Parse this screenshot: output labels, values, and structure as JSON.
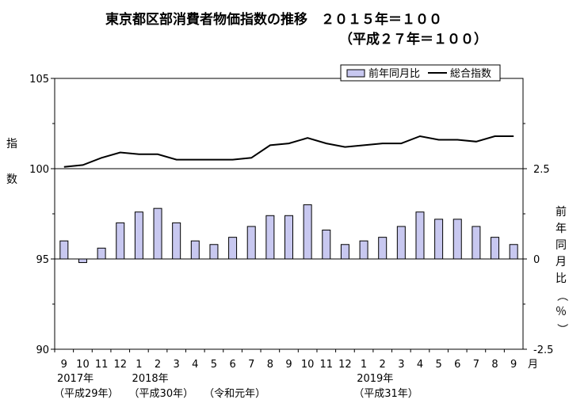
{
  "chart_data": {
    "type": "bar+line",
    "title": "東京都区部消費者物価指数の推移　２０１５年＝１００",
    "subtitle": "（平成２７年＝１００）",
    "left_axis": {
      "label": "指数",
      "ylim": [
        90,
        105
      ],
      "ticks": [
        "105",
        "100",
        "95",
        "90"
      ]
    },
    "right_axis": {
      "label": "前年同月比（％）",
      "ylim": [
        -2.5,
        5.0
      ],
      "ticks": [
        "2.5",
        "0",
        "-2.5"
      ]
    },
    "x_unit": "月",
    "categories": [
      "9",
      "10",
      "11",
      "12",
      "1",
      "2",
      "3",
      "4",
      "5",
      "6",
      "7",
      "8",
      "9",
      "10",
      "11",
      "12",
      "1",
      "2",
      "3",
      "4",
      "5",
      "6",
      "7",
      "8",
      "9"
    ],
    "year_labels": [
      {
        "year": "2017年",
        "era": "（平成29年）",
        "at": "9"
      },
      {
        "year": "2018年",
        "era": "（平成30年）",
        "at": "1"
      },
      {
        "year": "2019年",
        "era": "（平成31年）",
        "at": "1"
      },
      {
        "year": "",
        "era": "（令和元年）",
        "at": "5"
      }
    ],
    "series": [
      {
        "name": "前年同月比",
        "type": "bar",
        "axis": "right",
        "values": [
          0.5,
          -0.1,
          0.3,
          1.0,
          1.3,
          1.4,
          1.0,
          0.5,
          0.4,
          0.6,
          0.9,
          1.2,
          1.2,
          1.5,
          0.8,
          0.4,
          0.5,
          0.6,
          0.9,
          1.3,
          1.1,
          1.1,
          0.9,
          0.6,
          0.4
        ]
      },
      {
        "name": "総合指数",
        "type": "line",
        "axis": "left",
        "values": [
          100.1,
          100.2,
          100.6,
          100.9,
          100.8,
          100.8,
          100.5,
          100.5,
          100.5,
          100.5,
          100.6,
          101.3,
          101.4,
          101.7,
          101.4,
          101.2,
          101.3,
          101.4,
          101.4,
          101.8,
          101.6,
          101.6,
          101.5,
          101.8,
          101.8
        ]
      }
    ],
    "colors": {
      "bar_fill": "#c8c8f0",
      "bar_stroke": "#000000",
      "line": "#000000"
    },
    "legend_position": "top-right"
  }
}
